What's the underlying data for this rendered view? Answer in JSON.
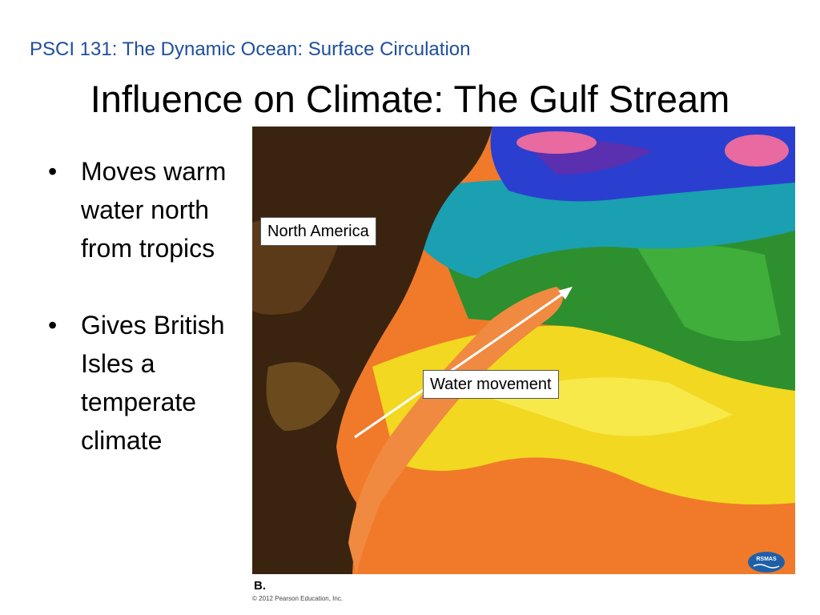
{
  "header": {
    "course": "PSCI 131: The Dynamic Ocean: Surface Circulation",
    "title": "Influence on Climate: The Gulf Stream"
  },
  "bullets": [
    {
      "text": "Moves warm water north from tropics"
    },
    {
      "text": "Gives British Isles a temperate climate"
    }
  ],
  "map": {
    "labels": {
      "north_america": "North America",
      "water_movement": "Water movement"
    },
    "figure_label": "B.",
    "copyright": "© 2012 Pearson Education, Inc.",
    "logo_text": "RSMAS",
    "colors": {
      "land": "#3a2410",
      "cold_water": "#2a3fd0",
      "cool_water": "#1aa0b0",
      "mid_water": "#2e8f2e",
      "warm_water": "#f2d820",
      "hot_water": "#f07a2a",
      "pink_cold": "#e86aa0"
    }
  }
}
